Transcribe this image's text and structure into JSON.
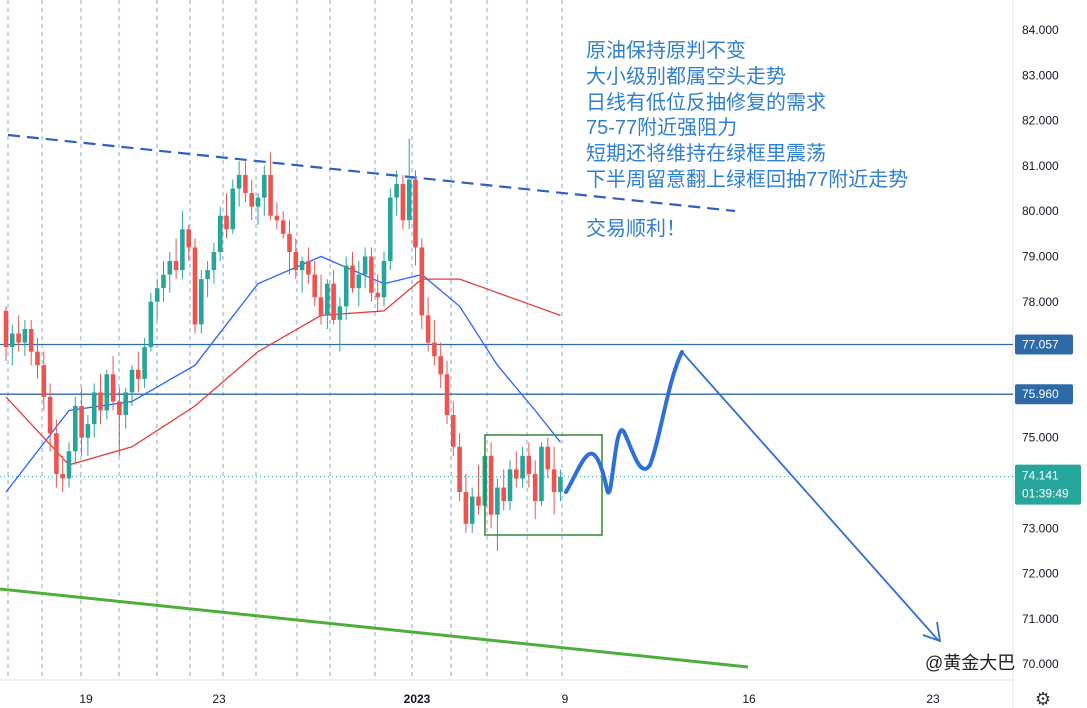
{
  "chart_data": {
    "type": "candlestick",
    "instrument_note": "",
    "y_ticks": [
      "84.000",
      "83.000",
      "82.000",
      "81.000",
      "80.000",
      "79.000",
      "78.000",
      "75.000",
      "73.000",
      "72.000",
      "71.000",
      "70.000"
    ],
    "y_range": [
      69.6,
      84.6
    ],
    "x_ticks": [
      {
        "label": "19",
        "bold": false
      },
      {
        "label": "23",
        "bold": false
      },
      {
        "label": "2023",
        "bold": true
      },
      {
        "label": "9",
        "bold": false
      },
      {
        "label": "16",
        "bold": false
      },
      {
        "label": "23",
        "bold": false
      }
    ],
    "colors": {
      "up": "#26a69a",
      "down": "#ef5350",
      "ma_fast": "#2962ff",
      "ma_slow": "#e53935",
      "level_line": "#2f6aa8",
      "trend_dashed": "#2f5fc0",
      "support_green": "#4caf3a",
      "box": "#2e8b2e",
      "forecast": "#2f6fd6",
      "annotation": "#2f7fd1",
      "session_lines": "#5b87c9"
    },
    "levels": [
      {
        "label": "77.057",
        "value": 77.057
      },
      {
        "label": "75.960",
        "value": 75.96
      }
    ],
    "current_price": {
      "label": "74.141",
      "countdown": "01:39:49",
      "value": 74.141
    },
    "candles": [
      [
        77.8,
        77.9,
        76.7,
        77.0
      ],
      [
        77.0,
        77.5,
        76.6,
        77.3
      ],
      [
        77.3,
        77.7,
        76.9,
        77.1
      ],
      [
        77.1,
        77.6,
        76.8,
        77.4
      ],
      [
        77.4,
        77.6,
        76.6,
        76.9
      ],
      [
        76.9,
        77.2,
        76.3,
        76.6
      ],
      [
        76.6,
        76.9,
        75.6,
        75.9
      ],
      [
        75.9,
        76.2,
        74.7,
        75.1
      ],
      [
        75.1,
        75.4,
        73.9,
        74.2
      ],
      [
        74.2,
        74.6,
        73.8,
        74.1
      ],
      [
        74.1,
        74.9,
        73.9,
        74.7
      ],
      [
        74.7,
        75.9,
        74.4,
        75.7
      ],
      [
        75.7,
        76.1,
        74.6,
        75.0
      ],
      [
        75.0,
        75.5,
        74.6,
        75.3
      ],
      [
        75.3,
        76.2,
        75.0,
        76.0
      ],
      [
        76.0,
        76.4,
        75.3,
        75.6
      ],
      [
        75.6,
        76.5,
        75.4,
        76.4
      ],
      [
        76.4,
        76.8,
        75.6,
        75.8
      ],
      [
        75.8,
        76.1,
        74.6,
        75.5
      ],
      [
        75.5,
        76.1,
        75.2,
        76.0
      ],
      [
        76.0,
        76.6,
        75.7,
        76.5
      ],
      [
        76.5,
        76.9,
        76.0,
        76.3
      ],
      [
        76.3,
        77.2,
        76.1,
        77.0
      ],
      [
        77.0,
        78.2,
        76.9,
        78.0
      ],
      [
        78.0,
        78.5,
        77.6,
        78.3
      ],
      [
        78.3,
        78.9,
        78.0,
        78.6
      ],
      [
        78.6,
        79.1,
        78.2,
        78.9
      ],
      [
        78.9,
        79.4,
        78.5,
        78.7
      ],
      [
        78.7,
        80.0,
        78.5,
        79.6
      ],
      [
        79.6,
        79.7,
        78.9,
        79.2
      ],
      [
        79.2,
        79.4,
        77.3,
        77.5
      ],
      [
        77.5,
        78.7,
        77.3,
        78.5
      ],
      [
        78.5,
        78.9,
        78.1,
        78.7
      ],
      [
        78.7,
        79.3,
        78.4,
        79.1
      ],
      [
        79.1,
        80.1,
        78.9,
        79.9
      ],
      [
        79.9,
        80.4,
        79.4,
        79.6
      ],
      [
        79.6,
        80.7,
        79.5,
        80.5
      ],
      [
        80.5,
        81.1,
        80.1,
        80.8
      ],
      [
        80.8,
        81.1,
        80.2,
        80.4
      ],
      [
        80.4,
        80.7,
        79.8,
        80.1
      ],
      [
        80.1,
        80.4,
        79.7,
        80.3
      ],
      [
        80.3,
        81.0,
        79.9,
        80.8
      ],
      [
        80.8,
        81.3,
        79.8,
        79.9
      ],
      [
        79.9,
        80.2,
        79.6,
        79.8
      ],
      [
        79.8,
        80.0,
        79.4,
        79.5
      ],
      [
        79.5,
        79.8,
        78.6,
        79.1
      ],
      [
        79.1,
        79.4,
        78.5,
        78.7
      ],
      [
        78.7,
        79.0,
        78.2,
        78.9
      ],
      [
        78.9,
        79.2,
        78.4,
        78.6
      ],
      [
        78.6,
        78.9,
        77.9,
        78.1
      ],
      [
        78.1,
        78.6,
        77.5,
        77.7
      ],
      [
        77.7,
        78.5,
        77.4,
        78.4
      ],
      [
        78.4,
        78.7,
        77.5,
        77.6
      ],
      [
        77.6,
        78.1,
        76.9,
        77.9
      ],
      [
        77.9,
        79.0,
        77.6,
        78.8
      ],
      [
        78.8,
        79.1,
        78.2,
        78.3
      ],
      [
        78.3,
        78.9,
        77.9,
        78.6
      ],
      [
        78.6,
        79.2,
        78.3,
        79.0
      ],
      [
        79.0,
        79.2,
        78.0,
        78.2
      ],
      [
        78.2,
        78.6,
        77.8,
        78.1
      ],
      [
        78.1,
        79.1,
        77.9,
        78.9
      ],
      [
        78.9,
        80.5,
        78.7,
        80.3
      ],
      [
        80.3,
        80.9,
        79.9,
        80.6
      ],
      [
        80.6,
        80.8,
        79.6,
        79.8
      ],
      [
        79.8,
        81.6,
        79.6,
        80.7
      ],
      [
        80.7,
        80.9,
        78.8,
        79.2
      ],
      [
        79.2,
        79.4,
        77.4,
        77.7
      ],
      [
        77.7,
        78.1,
        76.9,
        77.1
      ],
      [
        77.1,
        77.6,
        76.6,
        76.8
      ],
      [
        76.8,
        77.1,
        76.1,
        76.4
      ],
      [
        76.4,
        76.7,
        75.3,
        75.5
      ],
      [
        75.5,
        75.8,
        74.6,
        74.8
      ],
      [
        74.8,
        75.1,
        73.6,
        73.8
      ],
      [
        73.8,
        74.2,
        72.9,
        73.1
      ],
      [
        73.1,
        73.9,
        72.9,
        73.7
      ],
      [
        73.7,
        74.4,
        73.3,
        73.5
      ],
      [
        73.5,
        74.8,
        73.3,
        74.6
      ],
      [
        74.6,
        74.9,
        73.0,
        73.3
      ],
      [
        73.3,
        74.1,
        72.5,
        73.9
      ],
      [
        73.9,
        74.3,
        73.4,
        73.6
      ],
      [
        73.6,
        74.5,
        73.4,
        74.3
      ],
      [
        74.3,
        74.7,
        73.9,
        74.1
      ],
      [
        74.1,
        74.8,
        73.9,
        74.6
      ],
      [
        74.6,
        74.9,
        73.9,
        74.2
      ],
      [
        74.2,
        74.5,
        73.2,
        73.6
      ],
      [
        73.6,
        74.9,
        73.5,
        74.8
      ],
      [
        74.8,
        75.0,
        74.1,
        74.3
      ],
      [
        74.3,
        74.8,
        73.3,
        73.8
      ],
      [
        73.8,
        74.3,
        73.6,
        74.141
      ]
    ],
    "ma_fast": [
      [
        0,
        73.8
      ],
      [
        10,
        75.6
      ],
      [
        20,
        75.8
      ],
      [
        30,
        76.6
      ],
      [
        40,
        78.4
      ],
      [
        50,
        79.0
      ],
      [
        60,
        78.4
      ],
      [
        66,
        78.6
      ],
      [
        72,
        77.9
      ],
      [
        78,
        76.6
      ],
      [
        84,
        75.6
      ],
      [
        88,
        74.9
      ]
    ],
    "ma_slow": [
      [
        0,
        75.9
      ],
      [
        10,
        74.4
      ],
      [
        20,
        74.8
      ],
      [
        30,
        75.7
      ],
      [
        40,
        76.9
      ],
      [
        50,
        77.7
      ],
      [
        60,
        77.8
      ],
      [
        66,
        78.5
      ],
      [
        72,
        78.5
      ],
      [
        78,
        78.2
      ],
      [
        84,
        77.9
      ],
      [
        88,
        77.7
      ]
    ],
    "annotation_lines": [
      "原油保持原判不变",
      "大小级别都属空头走势",
      "日线有低位反抽修复的需求",
      "75-77附近强阻力",
      "短期还将维持在绿框里震荡",
      "下半周留意翻上绿框回抽77附近走势",
      "",
      "交易顺利！"
    ],
    "watermark": "@黄金大巴"
  }
}
